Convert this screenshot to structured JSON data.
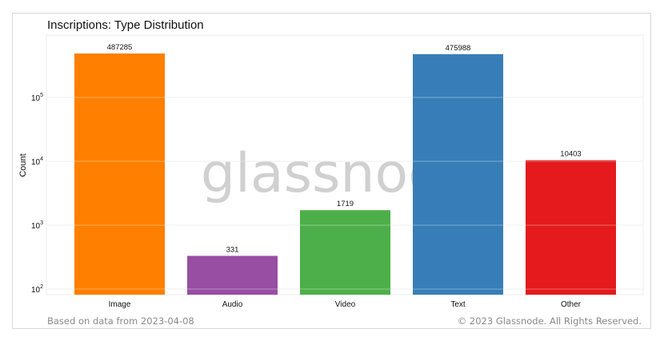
{
  "chart_data": {
    "type": "bar",
    "title": "Inscriptions: Type Distribution",
    "xlabel": "",
    "ylabel": "Count",
    "yscale": "log",
    "ylim": [
      80,
      600000
    ],
    "yticks": [
      {
        "value": 100,
        "base": "10",
        "exp": "2"
      },
      {
        "value": 1000,
        "base": "10",
        "exp": "3"
      },
      {
        "value": 10000,
        "base": "10",
        "exp": "4"
      },
      {
        "value": 100000,
        "base": "10",
        "exp": "5"
      }
    ],
    "grid": true,
    "categories": [
      "Image",
      "Audio",
      "Video",
      "Text",
      "Other"
    ],
    "values": [
      487285,
      331,
      1719,
      475988,
      10403
    ],
    "data_labels": [
      "487285",
      "331",
      "1719",
      "475988",
      "10403"
    ],
    "colors": [
      "#ff7f00",
      "#984ea3",
      "#4daf4a",
      "#377eb8",
      "#e41a1c"
    ]
  },
  "watermark": "glassnode",
  "footer": {
    "left": "Based on data from 2023-04-08",
    "right": "© 2023 Glassnode. All Rights Reserved."
  }
}
